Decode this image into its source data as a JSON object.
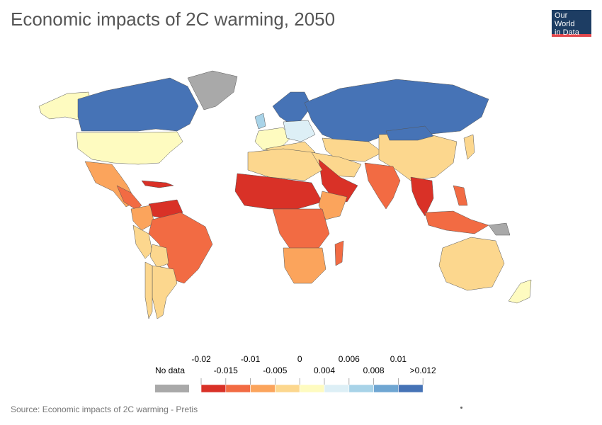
{
  "header": {
    "title": "Economic impacts of 2C warming, 2050",
    "logo_line1": "Our World",
    "logo_line2": "in Data"
  },
  "legend": {
    "no_data_label": "No data",
    "no_data_color": "#a9a9a9",
    "upper_ticks": [
      "-0.02",
      "-0.01",
      "0",
      "0.006",
      "0.01"
    ],
    "lower_ticks": [
      "-0.015",
      "-0.005",
      "0.004",
      "0.008",
      ">0.012"
    ],
    "bins": [
      {
        "color": "#d93127"
      },
      {
        "color": "#f26b43"
      },
      {
        "color": "#fba45c"
      },
      {
        "color": "#fcd78e"
      },
      {
        "color": "#fefbc0"
      },
      {
        "color": "#ddeff6"
      },
      {
        "color": "#a8d3e8"
      },
      {
        "color": "#6fa6d2"
      },
      {
        "color": "#4673b6"
      }
    ]
  },
  "footer": {
    "source": "Source: Economic impacts of 2C warming - Pretis"
  }
}
